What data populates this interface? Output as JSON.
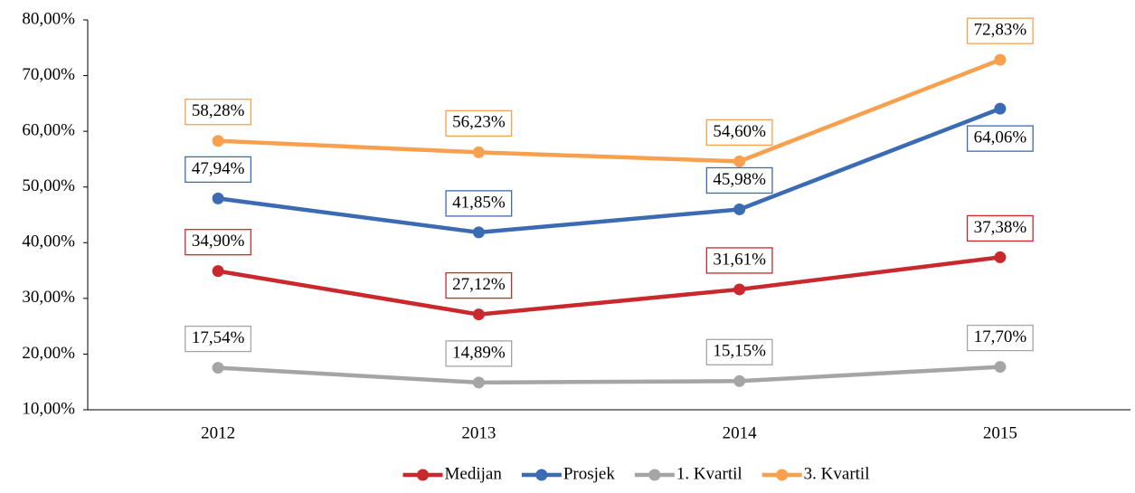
{
  "chart_data": {
    "type": "line",
    "categories": [
      "2012",
      "2013",
      "2014",
      "2015"
    ],
    "series": [
      {
        "name": "Medijan",
        "color": "#c9282d",
        "values": [
          34.9,
          27.12,
          31.61,
          37.38
        ],
        "value_labels": [
          "34,90%",
          "27,12%",
          "31,61%",
          "37,38%"
        ]
      },
      {
        "name": "Prosjek",
        "color": "#3b6bb3",
        "values": [
          47.94,
          41.85,
          45.98,
          64.06
        ],
        "value_labels": [
          "47,94%",
          "41,85%",
          "45,98%",
          "64,06%"
        ]
      },
      {
        "name": "1. Kvartil",
        "color": "#a5a5a5",
        "values": [
          17.54,
          14.89,
          15.15,
          17.7
        ],
        "value_labels": [
          "17,54%",
          "14,89%",
          "15,15%",
          "17,70%"
        ]
      },
      {
        "name": "3. Kvartil",
        "color": "#f9a04e",
        "values": [
          58.28,
          56.23,
          54.6,
          72.83
        ],
        "value_labels": [
          "58,28%",
          "56,23%",
          "54,60%",
          "72,83%"
        ]
      }
    ],
    "ylim": [
      10,
      80
    ],
    "yticks": [
      {
        "value": 10,
        "label": "10,00%"
      },
      {
        "value": 20,
        "label": "20,00%"
      },
      {
        "value": 30,
        "label": "30,00%"
      },
      {
        "value": 40,
        "label": "40,00%"
      },
      {
        "value": 50,
        "label": "50,00%"
      },
      {
        "value": 60,
        "label": "60,00%"
      },
      {
        "value": 70,
        "label": "70,00%"
      },
      {
        "value": 80,
        "label": "80,00%"
      }
    ],
    "grid": false,
    "legend": "bottom"
  }
}
